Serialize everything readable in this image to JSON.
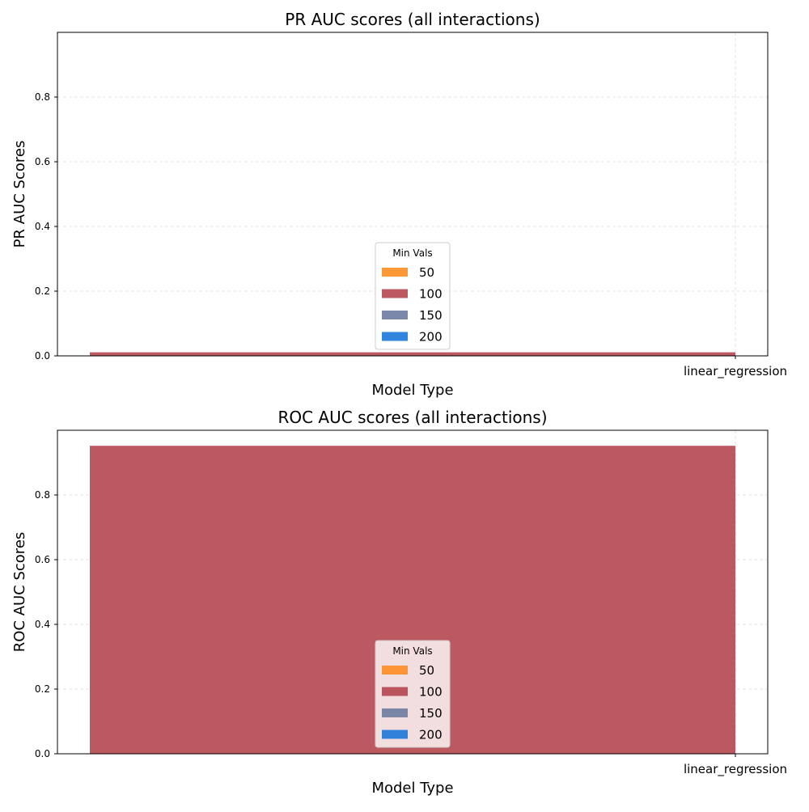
{
  "chart_data": [
    {
      "type": "bar",
      "title": "PR AUC scores (all interactions)",
      "xlabel": "Model Type",
      "ylabel": "PR AUC Scores",
      "categories": [
        "linear_regression"
      ],
      "ylim": [
        0,
        1.0
      ],
      "yticks": [
        "0.0",
        "0.2",
        "0.4",
        "0.6",
        "0.8"
      ],
      "grid": true,
      "legend_title": "Min Vals",
      "legend_position": "lower-center",
      "series": [
        {
          "name": "50",
          "color": "#fd8d24",
          "values": [
            0.0
          ]
        },
        {
          "name": "100",
          "color": "#b5464f",
          "values": [
            0.011
          ]
        },
        {
          "name": "150",
          "color": "#6e7ba0",
          "values": [
            0.0
          ]
        },
        {
          "name": "200",
          "color": "#1b77d9",
          "values": [
            0.0
          ]
        }
      ]
    },
    {
      "type": "bar",
      "title": "ROC AUC scores (all interactions)",
      "xlabel": "Model Type",
      "ylabel": "ROC AUC Scores",
      "categories": [
        "linear_regression"
      ],
      "ylim": [
        0,
        1.0
      ],
      "yticks": [
        "0.0",
        "0.2",
        "0.4",
        "0.6",
        "0.8"
      ],
      "grid": true,
      "legend_title": "Min Vals",
      "legend_position": "lower-center",
      "series": [
        {
          "name": "50",
          "color": "#fd8d24",
          "values": [
            0.0
          ]
        },
        {
          "name": "100",
          "color": "#b5464f",
          "values": [
            0.952
          ]
        },
        {
          "name": "150",
          "color": "#6e7ba0",
          "values": [
            0.0
          ]
        },
        {
          "name": "200",
          "color": "#1b77d9",
          "values": [
            0.0
          ]
        }
      ]
    }
  ]
}
